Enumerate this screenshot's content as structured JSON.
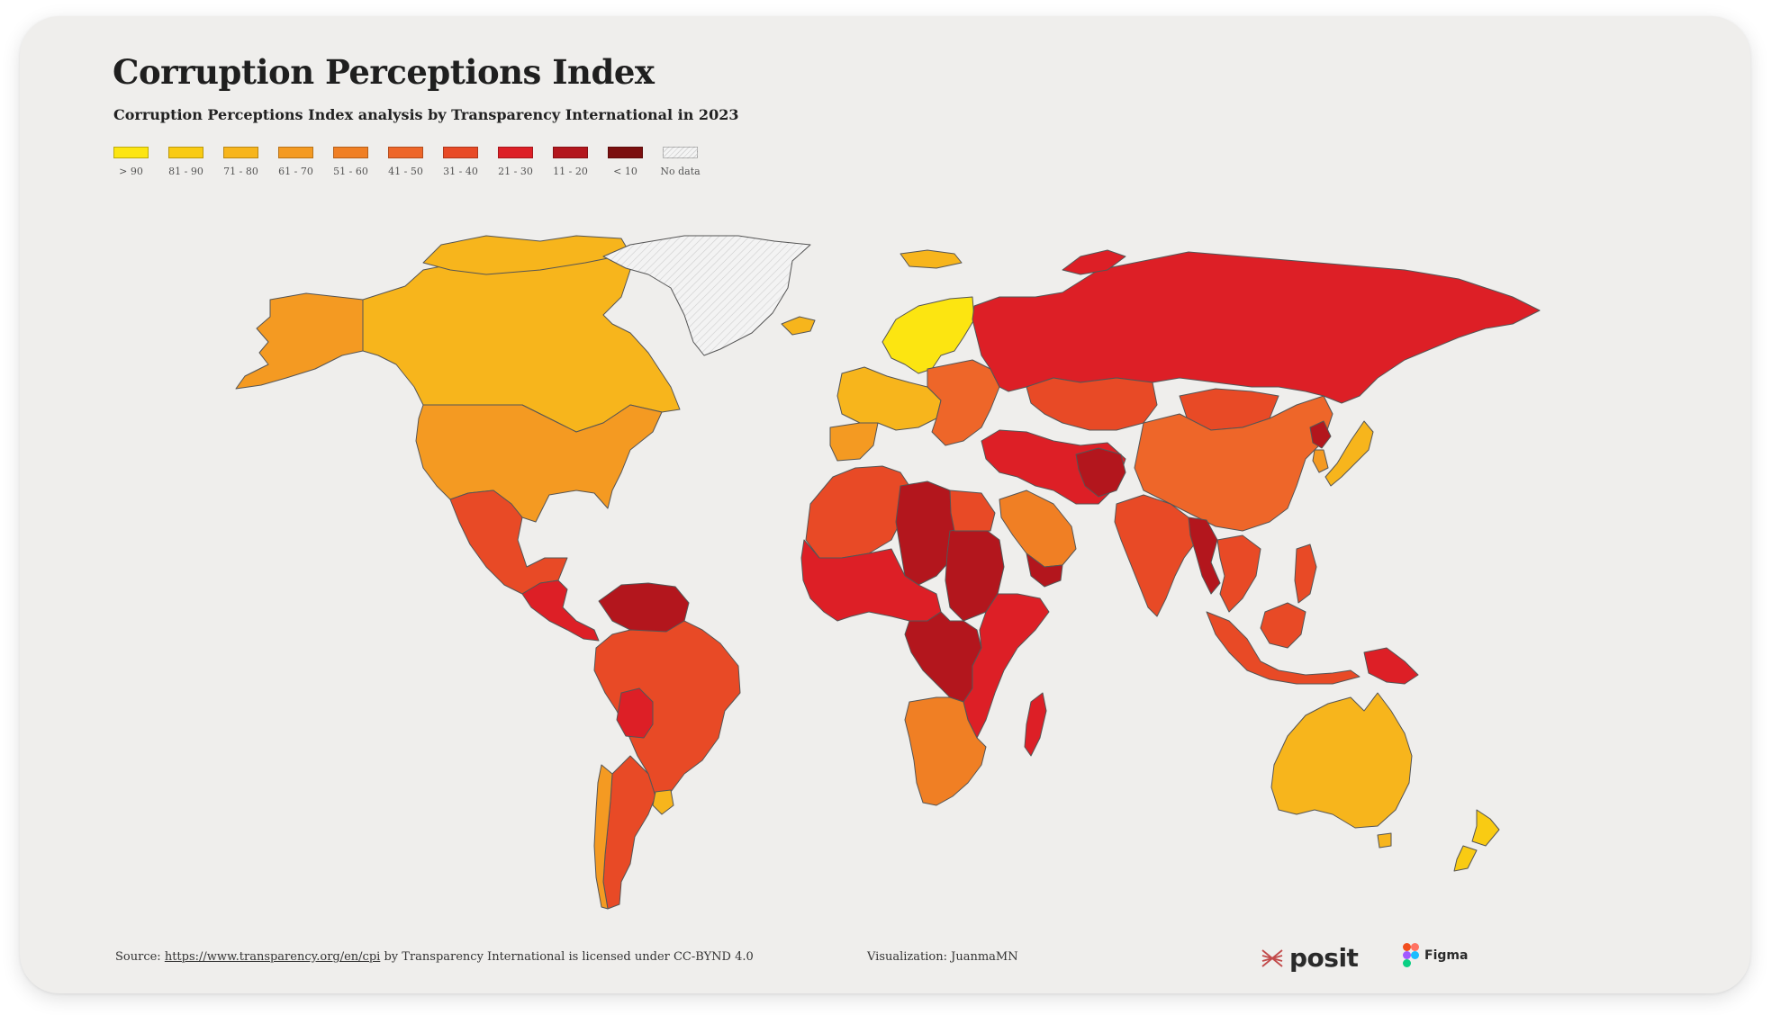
{
  "title": "Corruption Perceptions Index",
  "subtitle": "Corruption Perceptions Index analysis by Transparency International in 2023",
  "legend": [
    {
      "label": "> 90",
      "color": "#fce511"
    },
    {
      "label": "81 - 90",
      "color": "#f9cb13"
    },
    {
      "label": "71 - 80",
      "color": "#f7b51c"
    },
    {
      "label": "61 - 70",
      "color": "#f49a22"
    },
    {
      "label": "51 - 60",
      "color": "#f07f24"
    },
    {
      "label": "41 - 50",
      "color": "#ee6629"
    },
    {
      "label": "31 - 40",
      "color": "#e84a26"
    },
    {
      "label": "21 - 30",
      "color": "#dd1f26"
    },
    {
      "label": "11 - 20",
      "color": "#b3161d"
    },
    {
      "label": "< 10",
      "color": "#7b0f0f"
    },
    {
      "label": "No data",
      "color": "hatch"
    }
  ],
  "footer": {
    "source_prefix": "Source:",
    "source_link": "https://www.transparency.org/en/cpi",
    "source_suffix": "by Transparency International is licensed under CC-BYND 4.0",
    "visualization": "Visualization: JuanmaMN"
  },
  "logos": {
    "posit": "posit",
    "figma": "Figma"
  },
  "map_regions": [
    {
      "id": "alaska",
      "band": "61 - 70"
    },
    {
      "id": "canada",
      "band": "71 - 80"
    },
    {
      "id": "greenland",
      "band": "No data"
    },
    {
      "id": "usa",
      "band": "61 - 70"
    },
    {
      "id": "mexico",
      "band": "31 - 40"
    },
    {
      "id": "central-america",
      "band": "21 - 30"
    },
    {
      "id": "venezuela",
      "band": "11 - 20"
    },
    {
      "id": "brazil",
      "band": "31 - 40"
    },
    {
      "id": "bolivia",
      "band": "21 - 30"
    },
    {
      "id": "argentina",
      "band": "31 - 40"
    },
    {
      "id": "chile",
      "band": "61 - 70"
    },
    {
      "id": "uruguay",
      "band": "71 - 80"
    },
    {
      "id": "iceland",
      "band": "71 - 80"
    },
    {
      "id": "nordics",
      "band": "> 90"
    },
    {
      "id": "western-europe",
      "band": "71 - 80"
    },
    {
      "id": "iberia",
      "band": "61 - 70"
    },
    {
      "id": "eastern-europe",
      "band": "41 - 50"
    },
    {
      "id": "russia",
      "band": "21 - 30"
    },
    {
      "id": "kazakhstan",
      "band": "31 - 40"
    },
    {
      "id": "china",
      "band": "41 - 50"
    },
    {
      "id": "japan",
      "band": "71 - 80"
    },
    {
      "id": "south-korea",
      "band": "61 - 70"
    },
    {
      "id": "north-korea",
      "band": "11 - 20"
    },
    {
      "id": "mongolia",
      "band": "31 - 40"
    },
    {
      "id": "middle-east",
      "band": "21 - 30"
    },
    {
      "id": "saudi-arabia",
      "band": "51 - 60"
    },
    {
      "id": "yemen",
      "band": "11 - 20"
    },
    {
      "id": "afghanistan",
      "band": "11 - 20"
    },
    {
      "id": "india",
      "band": "31 - 40"
    },
    {
      "id": "myanmar",
      "band": "11 - 20"
    },
    {
      "id": "southeast-asia",
      "band": "31 - 40"
    },
    {
      "id": "indonesia",
      "band": "31 - 40"
    },
    {
      "id": "papua-new-guinea",
      "band": "21 - 30"
    },
    {
      "id": "north-africa",
      "band": "31 - 40"
    },
    {
      "id": "libya",
      "band": "11 - 20"
    },
    {
      "id": "sudan",
      "band": "11 - 20"
    },
    {
      "id": "west-africa",
      "band": "21 - 30"
    },
    {
      "id": "central-africa",
      "band": "11 - 20"
    },
    {
      "id": "east-africa",
      "band": "21 - 30"
    },
    {
      "id": "southern-africa",
      "band": "51 - 60"
    },
    {
      "id": "madagascar",
      "band": "21 - 30"
    },
    {
      "id": "australia",
      "band": "71 - 80"
    },
    {
      "id": "new-zealand",
      "band": "81 - 90"
    }
  ]
}
